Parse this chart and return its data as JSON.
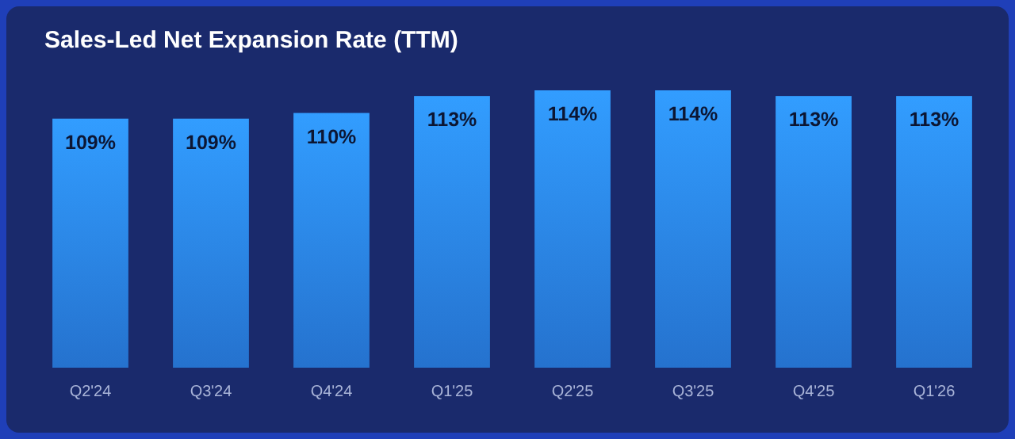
{
  "chart_data": {
    "type": "bar",
    "title": "Sales-Led Net Expansion Rate (TTM)",
    "categories": [
      "Q2'24",
      "Q3'24",
      "Q4'24",
      "Q1'25",
      "Q2'25",
      "Q3'25",
      "Q4'25",
      "Q1'26"
    ],
    "values": [
      109,
      109,
      110,
      113,
      114,
      114,
      113,
      113
    ],
    "value_labels": [
      "109%",
      "109%",
      "110%",
      "113%",
      "114%",
      "114%",
      "113%",
      "113%"
    ],
    "color": "#2b86f2",
    "ylim": [
      65,
      114
    ],
    "tick_labels": "x"
  }
}
